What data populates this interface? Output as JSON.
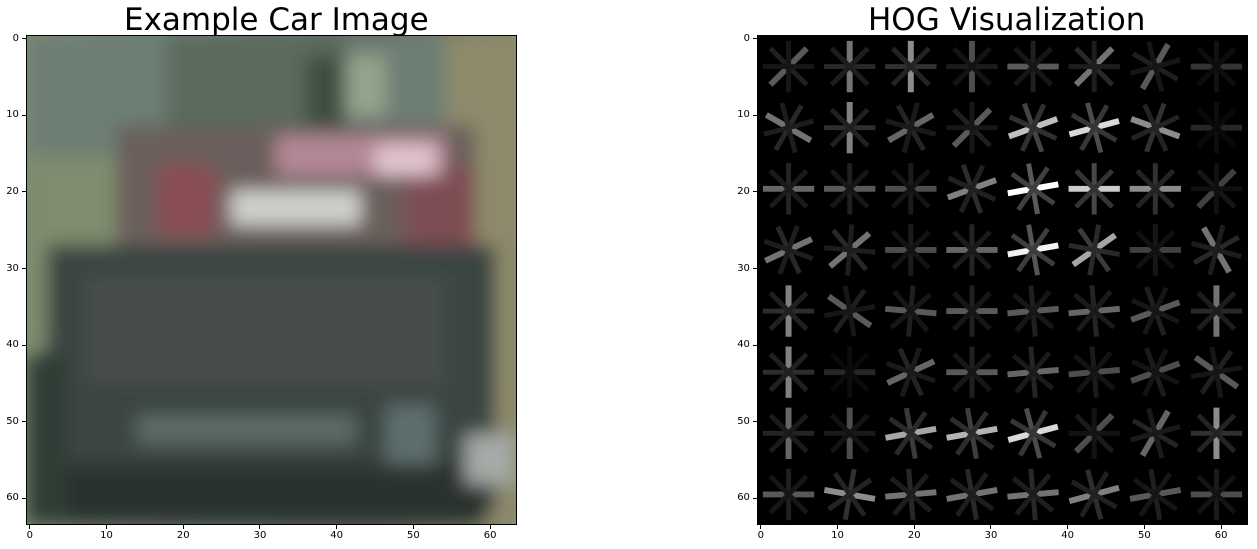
{
  "left_panel": {
    "title": "Example Car Image",
    "x_ticks": [
      "0",
      "10",
      "20",
      "30",
      "40",
      "50",
      "60"
    ],
    "y_ticks": [
      "0",
      "10",
      "20",
      "30",
      "40",
      "50",
      "60"
    ]
  },
  "right_panel": {
    "title": "HOG Visualization",
    "x_ticks": [
      "0",
      "10",
      "20",
      "30",
      "40",
      "50",
      "60"
    ],
    "y_ticks": [
      "0",
      "10",
      "20",
      "30",
      "40",
      "50",
      "60"
    ],
    "hog_colormap": "gray",
    "hog_background": "#000000"
  }
}
